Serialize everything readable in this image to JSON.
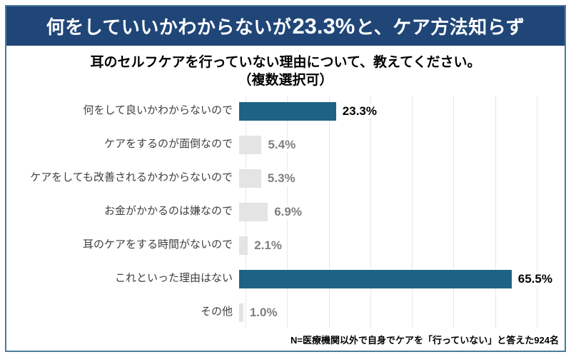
{
  "page": {
    "frame_border_color": "#4a7c9b",
    "background_color": "#ffffff"
  },
  "header": {
    "text_before": "何をしていいかわからないが",
    "highlight_number": "23.3%",
    "text_after": "と、ケア方法知らず",
    "bg_color": "#204678",
    "text_color": "#ffffff"
  },
  "chart_title": {
    "line1": "耳のセルフケアを行っていない理由について、教えてください。",
    "line2": "（複数選択可）"
  },
  "chart_data": {
    "type": "bar",
    "orientation": "horizontal",
    "title": "耳のセルフケアを行っていない理由について、教えてください。（複数選択可）",
    "categories": [
      "何をして良いかわからないので",
      "ケアをするのが面倒なので",
      "ケアをしても改善されるかわからないので",
      "お金がかかるのは嫌なので",
      "耳のケアをする時間がないので",
      "これといった理由はない",
      "その他"
    ],
    "values": [
      23.3,
      5.4,
      5.3,
      6.9,
      2.1,
      65.5,
      1.0
    ],
    "value_labels": [
      "23.3%",
      "5.4%",
      "5.3%",
      "6.9%",
      "2.1%",
      "65.5%",
      "1.0%"
    ],
    "highlighted": [
      true,
      false,
      false,
      false,
      false,
      true,
      false
    ],
    "bar_color_highlight": "#1f6384",
    "bar_color_default": "#e4e4e4",
    "value_label_color_highlight": "#000000",
    "value_label_color_default": "#7f7f7f",
    "xlabel": "",
    "ylabel": "",
    "xlim": [
      0,
      70
    ],
    "gridline_interval": 10,
    "grid": true,
    "legend": false
  },
  "footnote": {
    "text": "N=医療機関以外で自身でケアを「行っていない」と答えた924名"
  }
}
